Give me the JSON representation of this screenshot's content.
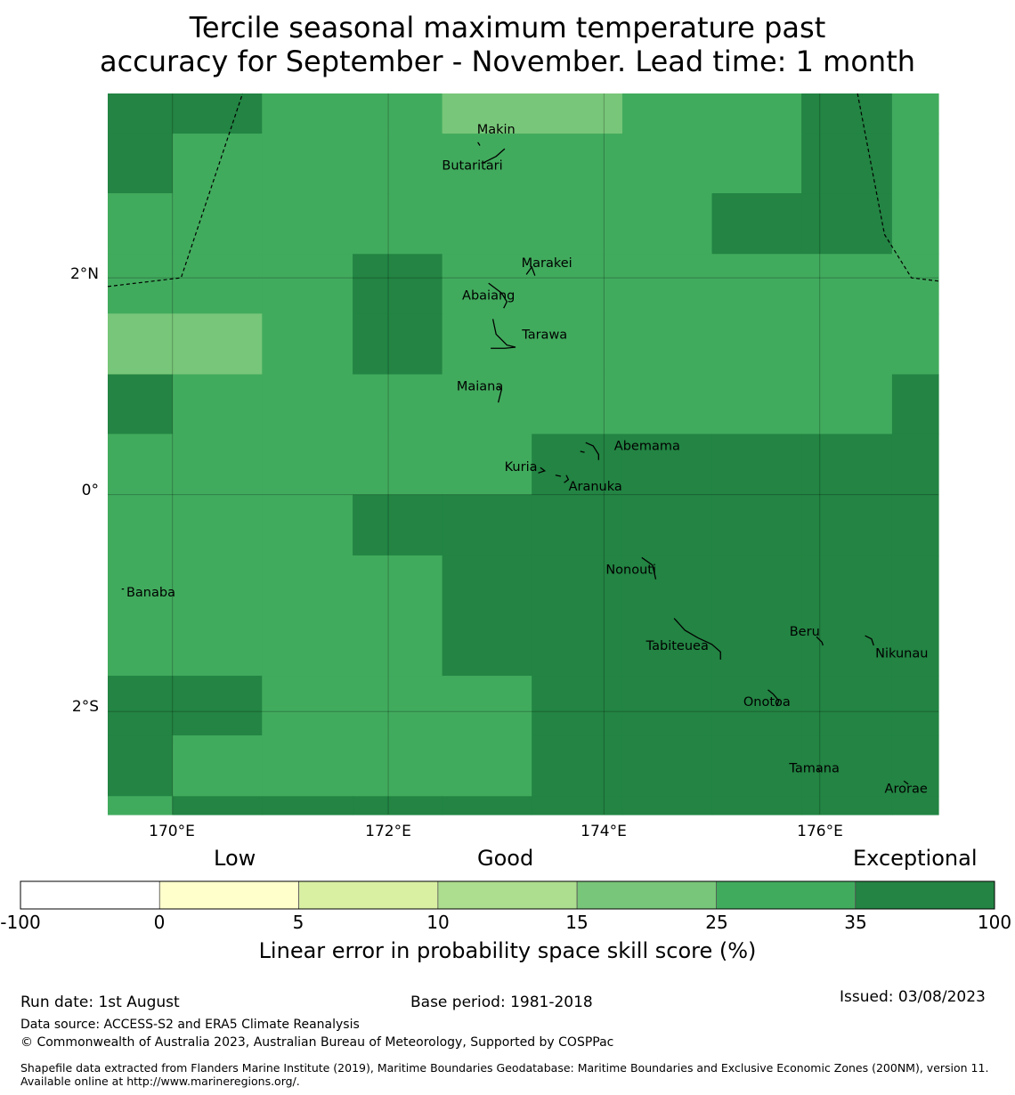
{
  "title": {
    "line1": "Tercile seasonal maximum temperature past",
    "line2": "accuracy for September - November. Lead time: 1 month"
  },
  "map": {
    "lon_range": [
      169.4,
      177.1
    ],
    "lat_range": [
      -2.95,
      3.7
    ],
    "lat_ticks": [
      {
        "value": 2,
        "label": "2°N"
      },
      {
        "value": 0,
        "label": "0°"
      },
      {
        "value": -2,
        "label": "2°S"
      }
    ],
    "lon_ticks": [
      {
        "value": 170,
        "label": "170°E"
      },
      {
        "value": 172,
        "label": "172°E"
      },
      {
        "value": 174,
        "label": "174°E"
      },
      {
        "value": 176,
        "label": "176°E"
      }
    ],
    "colors": {
      "c15_25": "#78c679",
      "c25_35": "#41ab5d",
      "c35_100": "#238443"
    },
    "grid_lon_edges": [
      169.4,
      170.0,
      170.83,
      171.67,
      172.5,
      173.33,
      174.17,
      175.0,
      175.83,
      176.67,
      177.1
    ],
    "grid_lat_edges": [
      3.7,
      3.33,
      2.78,
      2.22,
      1.67,
      1.11,
      0.56,
      0.0,
      -0.56,
      -1.67,
      -2.22,
      -2.78,
      -2.95
    ],
    "grid_classes": [
      [
        "c35_100",
        "c35_100",
        "c25_35",
        "c25_35",
        "c15_25",
        "c15_25",
        "c25_35",
        "c25_35",
        "c35_100",
        "c25_35"
      ],
      [
        "c35_100",
        "c25_35",
        "c25_35",
        "c25_35",
        "c25_35",
        "c25_35",
        "c25_35",
        "c25_35",
        "c35_100",
        "c25_35"
      ],
      [
        "c25_35",
        "c25_35",
        "c25_35",
        "c25_35",
        "c25_35",
        "c25_35",
        "c25_35",
        "c35_100",
        "c35_100",
        "c25_35"
      ],
      [
        "c25_35",
        "c25_35",
        "c25_35",
        "c35_100",
        "c25_35",
        "c25_35",
        "c25_35",
        "c25_35",
        "c25_35",
        "c25_35"
      ],
      [
        "c15_25",
        "c15_25",
        "c25_35",
        "c35_100",
        "c25_35",
        "c25_35",
        "c25_35",
        "c25_35",
        "c25_35",
        "c25_35"
      ],
      [
        "c35_100",
        "c25_35",
        "c25_35",
        "c25_35",
        "c25_35",
        "c25_35",
        "c25_35",
        "c25_35",
        "c25_35",
        "c35_100"
      ],
      [
        "c25_35",
        "c25_35",
        "c25_35",
        "c25_35",
        "c25_35",
        "c35_100",
        "c35_100",
        "c35_100",
        "c35_100",
        "c35_100"
      ],
      [
        "c25_35",
        "c25_35",
        "c25_35",
        "c35_100",
        "c35_100",
        "c35_100",
        "c35_100",
        "c35_100",
        "c35_100",
        "c35_100"
      ],
      [
        "c25_35",
        "c25_35",
        "c25_35",
        "c25_35",
        "c35_100",
        "c35_100",
        "c35_100",
        "c35_100",
        "c35_100",
        "c35_100"
      ],
      [
        "c35_100",
        "c35_100",
        "c25_35",
        "c25_35",
        "c25_35",
        "c35_100",
        "c35_100",
        "c35_100",
        "c35_100",
        "c35_100"
      ],
      [
        "c35_100",
        "c25_35",
        "c25_35",
        "c25_35",
        "c25_35",
        "c35_100",
        "c35_100",
        "c35_100",
        "c35_100",
        "c35_100"
      ],
      [
        "c25_35",
        "c35_100",
        "c35_100",
        "c35_100",
        "c35_100",
        "c35_100",
        "c35_100",
        "c35_100",
        "c35_100",
        "c35_100"
      ]
    ],
    "boundaries": [
      [
        [
          169.4,
          1.92
        ],
        [
          170.08,
          2.0
        ],
        [
          170.65,
          3.7
        ]
      ],
      [
        [
          176.35,
          3.7
        ],
        [
          176.6,
          2.4
        ],
        [
          176.85,
          2.0
        ],
        [
          177.1,
          1.97
        ]
      ]
    ],
    "places": [
      {
        "name": "Makin",
        "lon": 173.0,
        "lat": 3.33
      },
      {
        "name": "Butaritari",
        "lon": 172.78,
        "lat": 3.0
      },
      {
        "name": "Marakei",
        "lon": 173.47,
        "lat": 2.1
      },
      {
        "name": "Abaiang",
        "lon": 172.93,
        "lat": 1.8
      },
      {
        "name": "Tarawa",
        "lon": 173.45,
        "lat": 1.44
      },
      {
        "name": "Maiana",
        "lon": 172.85,
        "lat": 0.96
      },
      {
        "name": "Abemama",
        "lon": 174.4,
        "lat": 0.41
      },
      {
        "name": "Kuria",
        "lon": 173.23,
        "lat": 0.22
      },
      {
        "name": "Aranuka",
        "lon": 173.92,
        "lat": 0.04
      },
      {
        "name": "Banaba",
        "lon": 169.8,
        "lat": -0.94
      },
      {
        "name": "Nonouti",
        "lon": 174.25,
        "lat": -0.73
      },
      {
        "name": "Tabiteuea",
        "lon": 174.68,
        "lat": -1.43
      },
      {
        "name": "Beru",
        "lon": 175.86,
        "lat": -1.3
      },
      {
        "name": "Nikunau",
        "lon": 176.76,
        "lat": -1.5
      },
      {
        "name": "Onotoa",
        "lon": 175.51,
        "lat": -1.95
      },
      {
        "name": "Tamana",
        "lon": 175.95,
        "lat": -2.56
      },
      {
        "name": "Arorae",
        "lon": 176.8,
        "lat": -2.75
      }
    ],
    "islands": [
      [
        [
          172.83,
          3.25
        ],
        [
          172.85,
          3.22
        ]
      ],
      [
        [
          172.88,
          3.06
        ],
        [
          173.0,
          3.12
        ],
        [
          173.08,
          3.19
        ]
      ],
      [
        [
          173.28,
          2.03
        ],
        [
          173.33,
          2.1
        ],
        [
          173.36,
          2.02
        ]
      ],
      [
        [
          172.93,
          1.95
        ],
        [
          173.05,
          1.86
        ],
        [
          173.1,
          1.78
        ],
        [
          173.07,
          1.72
        ]
      ],
      [
        [
          172.97,
          1.62
        ],
        [
          173.0,
          1.48
        ],
        [
          173.1,
          1.38
        ],
        [
          173.18,
          1.36
        ],
        [
          173.08,
          1.35
        ],
        [
          172.95,
          1.35
        ]
      ],
      [
        [
          173.02,
          1.0
        ],
        [
          173.05,
          0.97
        ],
        [
          173.02,
          0.85
        ]
      ],
      [
        [
          173.83,
          0.48
        ],
        [
          173.9,
          0.45
        ],
        [
          173.95,
          0.37
        ],
        [
          173.95,
          0.32
        ]
      ],
      [
        [
          173.78,
          0.4
        ],
        [
          173.82,
          0.39
        ]
      ],
      [
        [
          173.41,
          0.25
        ],
        [
          173.45,
          0.22
        ],
        [
          173.39,
          0.2
        ]
      ],
      [
        [
          173.55,
          0.18
        ],
        [
          173.6,
          0.17
        ]
      ],
      [
        [
          173.65,
          0.18
        ],
        [
          173.67,
          0.14
        ],
        [
          173.63,
          0.11
        ]
      ],
      [
        [
          169.53,
          -0.87
        ],
        [
          169.55,
          -0.87
        ]
      ],
      [
        [
          174.35,
          -0.58
        ],
        [
          174.45,
          -0.65
        ],
        [
          174.48,
          -0.78
        ]
      ],
      [
        [
          174.65,
          -1.14
        ],
        [
          174.75,
          -1.25
        ],
        [
          174.87,
          -1.32
        ],
        [
          175.0,
          -1.38
        ],
        [
          175.08,
          -1.45
        ],
        [
          175.08,
          -1.52
        ]
      ],
      [
        [
          175.97,
          -1.31
        ],
        [
          176.02,
          -1.36
        ],
        [
          176.03,
          -1.39
        ]
      ],
      [
        [
          176.42,
          -1.3
        ],
        [
          176.48,
          -1.33
        ],
        [
          176.5,
          -1.39
        ]
      ],
      [
        [
          175.52,
          -1.8
        ],
        [
          175.57,
          -1.84
        ],
        [
          175.62,
          -1.9
        ],
        [
          175.6,
          -1.95
        ]
      ],
      [
        [
          175.98,
          -2.52
        ],
        [
          176.0,
          -2.55
        ]
      ],
      [
        [
          176.78,
          -2.64
        ],
        [
          176.82,
          -2.67
        ]
      ]
    ]
  },
  "legend": {
    "categories": [
      "Low",
      "Good",
      "Exceptional"
    ],
    "bins": [
      {
        "from": -100,
        "to": 0,
        "color": "#ffffff"
      },
      {
        "from": 0,
        "to": 5,
        "color": "#ffffcc"
      },
      {
        "from": 5,
        "to": 10,
        "color": "#d9f0a3"
      },
      {
        "from": 10,
        "to": 15,
        "color": "#addd8e"
      },
      {
        "from": 15,
        "to": 25,
        "color": "#78c679"
      },
      {
        "from": 25,
        "to": 35,
        "color": "#41ab5d"
      },
      {
        "from": 35,
        "to": 100,
        "color": "#238443"
      }
    ],
    "ticks": [
      "-100",
      "0",
      "5",
      "10",
      "15",
      "25",
      "35",
      "100"
    ],
    "label": "Linear error in probability space skill score (%)"
  },
  "footer": {
    "run_date": "Run date: 1st August",
    "base_period": "Base period: 1981-2018",
    "issued": "Issued: 03/08/2023",
    "data_source": "Data source: ACCESS-S2 and ERA5 Climate Reanalysis",
    "copyright": "© Commonwealth of Australia 2023, Australian Bureau of Meteorology, Supported by COSPPac",
    "shapefile": "Shapefile data extracted from Flanders Marine Institute (2019), Maritime Boundaries Geodatabase: Maritime Boundaries and Exclusive Economic Zones (200NM), version 11. Available online at http://www.marineregions.org/."
  }
}
